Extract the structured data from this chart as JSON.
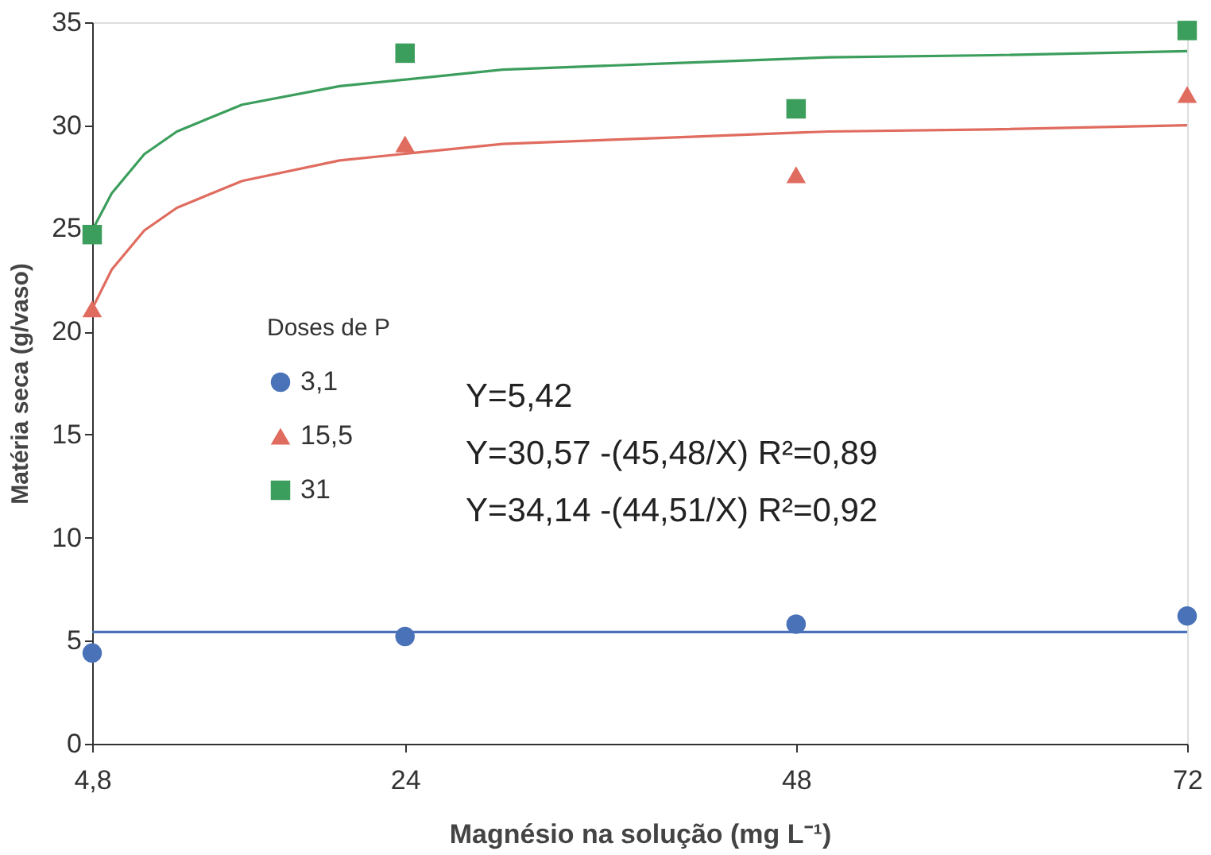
{
  "chart_data": {
    "type": "scatter",
    "xlabel": "Magnésio na solução (mg L⁻¹)",
    "ylabel": "Matéria seca (g/vaso)",
    "legend_title": "Doses de P",
    "legend": "left",
    "grid": false,
    "xlim": [
      4.8,
      72
    ],
    "xticks": [
      {
        "value": 4.8,
        "label": "4,8"
      },
      24,
      48,
      72
    ],
    "ylim": [
      0,
      35
    ],
    "yticks": [
      0,
      5,
      10,
      15,
      20,
      25,
      30,
      35
    ],
    "series": [
      {
        "name": "3,1",
        "type": "scatter",
        "marker": "circle",
        "color": "#4a72b8",
        "x": [
          4.8,
          24,
          48,
          72
        ],
        "values": [
          4.4,
          5.2,
          5.8,
          6.2
        ]
      },
      {
        "name": "15,5",
        "type": "scatter",
        "marker": "triangle",
        "color": "#e06b5f",
        "x": [
          4.8,
          24,
          48,
          72
        ],
        "values": [
          21.1,
          29.1,
          27.6,
          31.5
        ]
      },
      {
        "name": "31",
        "type": "scatter",
        "marker": "square",
        "color": "#3c9e5c",
        "x": [
          4.8,
          24,
          48,
          72
        ],
        "values": [
          24.7,
          33.5,
          30.8,
          34.6
        ]
      },
      {
        "type": "line",
        "marker": "none",
        "color": "#4a72b8",
        "x": [
          4.8,
          72
        ],
        "values": [
          5.42,
          5.42
        ]
      },
      {
        "type": "line",
        "marker": "none",
        "color": "#e06b5f",
        "x": [
          4.8,
          6,
          8,
          10,
          14,
          20,
          30,
          40,
          50,
          60,
          72
        ],
        "values": [
          21.1,
          23.0,
          24.9,
          26.0,
          27.3,
          28.3,
          29.1,
          29.4,
          29.7,
          29.8,
          30.0
        ]
      },
      {
        "type": "line",
        "marker": "none",
        "color": "#3c9e5c",
        "x": [
          4.8,
          6,
          8,
          10,
          14,
          20,
          30,
          40,
          50,
          60,
          72
        ],
        "values": [
          24.9,
          26.7,
          28.6,
          29.7,
          31.0,
          31.9,
          32.7,
          33.0,
          33.3,
          33.4,
          33.6
        ]
      }
    ],
    "annotations": [
      "Y=5,42",
      "Y=30,57 -(45,48/X)  R²=0,89",
      "Y=34,14 -(44,51/X)  R²=0,92"
    ]
  }
}
